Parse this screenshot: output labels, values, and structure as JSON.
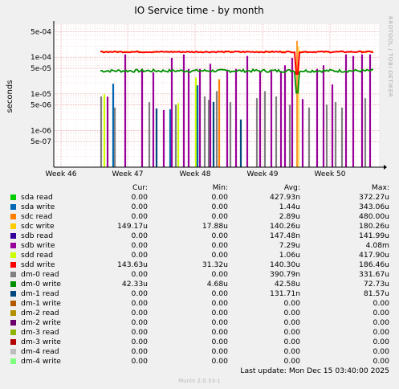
{
  "chart_data": {
    "type": "line",
    "title": "IO Service time - by month",
    "ylabel": "seconds",
    "y_scale": "log",
    "ylim": [
      1e-07,
      0.0008
    ],
    "y_ticks": [
      "5e-04",
      "1e-04",
      "5e-05",
      "1e-05",
      "5e-06",
      "1e-06",
      "5e-07"
    ],
    "x_ticks": [
      "Week 46",
      "Week 47",
      "Week 48",
      "Week 49",
      "Week 50"
    ],
    "side_label": "RRDTOOL / TOBI OETIKER",
    "columns": [
      "Cur:",
      "Min:",
      "Avg:",
      "Max:"
    ],
    "series": [
      {
        "name": "sda read",
        "color": "#00cc00",
        "cur": "0.00",
        "min": "0.00",
        "avg": "427.93n",
        "max": "372.27u"
      },
      {
        "name": "sda write",
        "color": "#0066b3",
        "cur": "0.00",
        "min": "0.00",
        "avg": "1.44u",
        "max": "343.06u"
      },
      {
        "name": "sdc read",
        "color": "#ff8000",
        "cur": "0.00",
        "min": "0.00",
        "avg": "2.89u",
        "max": "480.00u"
      },
      {
        "name": "sdc write",
        "color": "#ffcc00",
        "cur": "149.17u",
        "min": "17.88u",
        "avg": "140.26u",
        "max": "180.26u"
      },
      {
        "name": "sdb read",
        "color": "#330099",
        "cur": "0.00",
        "min": "0.00",
        "avg": "147.48n",
        "max": "141.99u"
      },
      {
        "name": "sdb write",
        "color": "#990099",
        "cur": "0.00",
        "min": "0.00",
        "avg": "7.29u",
        "max": "4.08m"
      },
      {
        "name": "sdd read",
        "color": "#ccff00",
        "cur": "0.00",
        "min": "0.00",
        "avg": "1.06u",
        "max": "417.90u"
      },
      {
        "name": "sdd write",
        "color": "#ff0000",
        "cur": "143.63u",
        "min": "31.32u",
        "avg": "140.30u",
        "max": "186.46u"
      },
      {
        "name": "dm-0 read",
        "color": "#808080",
        "cur": "0.00",
        "min": "0.00",
        "avg": "390.79n",
        "max": "331.67u"
      },
      {
        "name": "dm-0 write",
        "color": "#008f00",
        "cur": "42.33u",
        "min": "4.68u",
        "avg": "42.58u",
        "max": "72.73u"
      },
      {
        "name": "dm-1 read",
        "color": "#00487d",
        "cur": "0.00",
        "min": "0.00",
        "avg": "131.71n",
        "max": "81.57u"
      },
      {
        "name": "dm-1 write",
        "color": "#b35a00",
        "cur": "0.00",
        "min": "0.00",
        "avg": "0.00",
        "max": "0.00"
      },
      {
        "name": "dm-2 read",
        "color": "#b38f00",
        "cur": "0.00",
        "min": "0.00",
        "avg": "0.00",
        "max": "0.00"
      },
      {
        "name": "dm-2 write",
        "color": "#6b006b",
        "cur": "0.00",
        "min": "0.00",
        "avg": "0.00",
        "max": "0.00"
      },
      {
        "name": "dm-3 read",
        "color": "#8fb300",
        "cur": "0.00",
        "min": "0.00",
        "avg": "0.00",
        "max": "0.00"
      },
      {
        "name": "dm-3 write",
        "color": "#b30000",
        "cur": "0.00",
        "min": "0.00",
        "avg": "0.00",
        "max": "0.00"
      },
      {
        "name": "dm-4 read",
        "color": "#bebebe",
        "cur": "0.00",
        "min": "0.00",
        "avg": "0.00",
        "max": "0.00"
      },
      {
        "name": "dm-4 write",
        "color": "#80ff80",
        "cur": "0.00",
        "min": "0.00",
        "avg": "0.00",
        "max": "0.00"
      }
    ],
    "levels": {
      "sdd_write": 0.00014,
      "sdc_write": 0.00014,
      "dm0_write": 4.26e-05
    },
    "spikes": {
      "sdb_write": 0.00012,
      "sdd_read": 2.8e-05,
      "sda_write": 1.9e-05,
      "dm0_read": 8.5e-06,
      "dm1_read": 4e-06,
      "sdc_read": 2.5e-05
    }
  },
  "footer": {
    "last_update": "Last update:  Mon Dec 15 03:40:00 2025",
    "munin": "Munin 2.0.33-1"
  }
}
